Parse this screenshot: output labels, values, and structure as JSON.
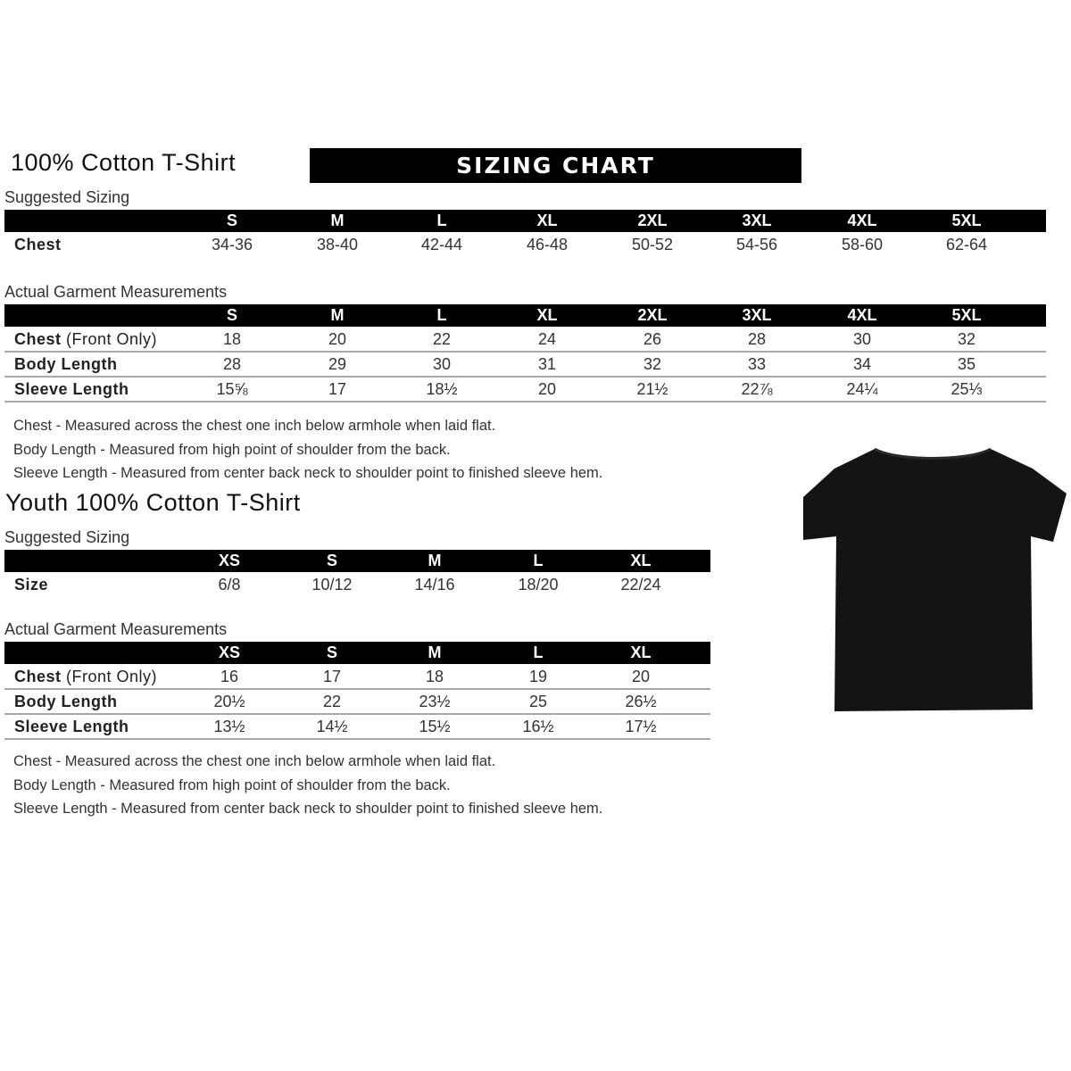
{
  "banner": "SIZING CHART",
  "adult": {
    "title": "100% Cotton T-Shirt",
    "suggested_label": "Suggested Sizing",
    "sizes": [
      "S",
      "M",
      "L",
      "XL",
      "2XL",
      "3XL",
      "4XL",
      "5XL"
    ],
    "suggested_rows": [
      {
        "label": "Chest",
        "values": [
          "34-36",
          "38-40",
          "42-44",
          "46-48",
          "50-52",
          "54-56",
          "58-60",
          "62-64"
        ]
      }
    ],
    "actual_label": "Actual Garment Measurements",
    "actual_rows": [
      {
        "label": "Chest",
        "label_note": " (Front Only)",
        "values": [
          "18",
          "20",
          "22",
          "24",
          "26",
          "28",
          "30",
          "32"
        ]
      },
      {
        "label": "Body Length",
        "values": [
          "28",
          "29",
          "30",
          "31",
          "32",
          "33",
          "34",
          "35"
        ]
      },
      {
        "label": "Sleeve Length",
        "values": [
          "15⅝",
          "17",
          "18½",
          "20",
          "21½",
          "22⅞",
          "24¼",
          "25⅓"
        ]
      }
    ],
    "notes": [
      "Chest - Measured across the chest one inch below armhole when laid flat.",
      "Body Length - Measured from high point of shoulder from the back.",
      "Sleeve Length - Measured from center back neck to shoulder point to finished sleeve hem."
    ]
  },
  "youth": {
    "title": "Youth 100% Cotton T-Shirt",
    "suggested_label": "Suggested Sizing",
    "sizes": [
      "XS",
      "S",
      "M",
      "L",
      "XL"
    ],
    "suggested_rows": [
      {
        "label": "Size",
        "values": [
          "6/8",
          "10/12",
          "14/16",
          "18/20",
          "22/24"
        ]
      }
    ],
    "actual_label": "Actual Garment Measurements",
    "actual_rows": [
      {
        "label": "Chest",
        "label_note": " (Front Only)",
        "values": [
          "16",
          "17",
          "18",
          "19",
          "20"
        ]
      },
      {
        "label": "Body Length",
        "values": [
          "20½",
          "22",
          "23½",
          "25",
          "26½"
        ]
      },
      {
        "label": "Sleeve Length",
        "values": [
          "13½",
          "14½",
          "15½",
          "16½",
          "17½"
        ]
      }
    ],
    "notes": [
      "Chest - Measured across the chest one inch below armhole when laid flat.",
      "Body Length - Measured from high point of shoulder from the back.",
      "Sleeve Length - Measured from center back neck to shoulder point to finished sleeve hem."
    ]
  },
  "colors": {
    "header_bg": "#000000",
    "header_text": "#ffffff",
    "tshirt": "#141414"
  }
}
